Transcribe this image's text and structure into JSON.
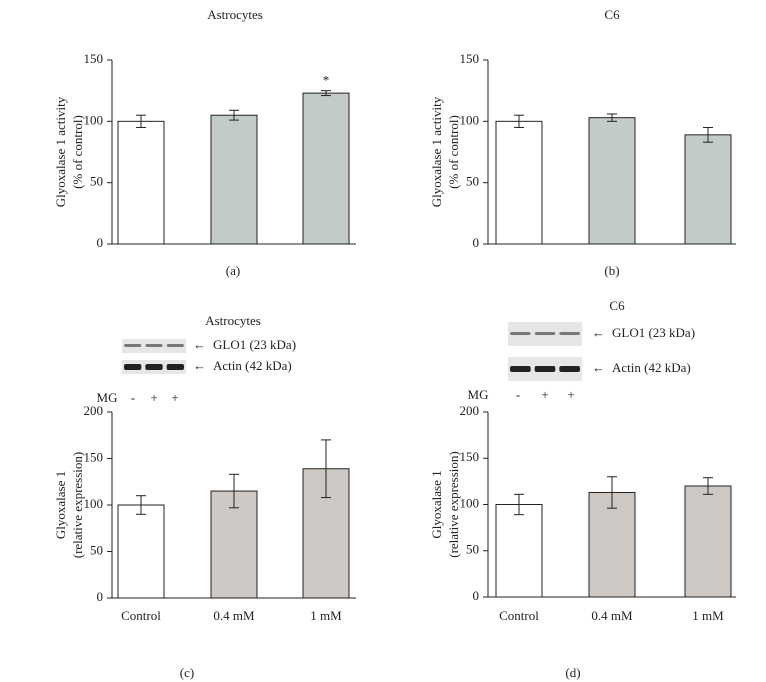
{
  "chart_data": [
    {
      "type": "bar",
      "title": "Astrocytes",
      "panel_label": "(a)",
      "ylabel": [
        "Glyoxalase 1 activity",
        "(% of control)"
      ],
      "categories": [
        null,
        null,
        null
      ],
      "values": [
        100,
        105,
        123
      ],
      "errors": [
        5,
        4,
        2
      ],
      "colors": [
        "#ffffff",
        "#c3cbc7",
        "#c3cbc7"
      ],
      "significance": [
        null,
        null,
        "*"
      ],
      "ylim": [
        0,
        150
      ],
      "yticks": [
        0,
        50,
        100,
        150
      ]
    },
    {
      "type": "bar",
      "title": "C6",
      "panel_label": "(b)",
      "ylabel": [
        "Glyoxalase 1 activity",
        "(% of control)"
      ],
      "categories": [
        null,
        null,
        null
      ],
      "values": [
        100,
        103,
        89
      ],
      "errors": [
        5,
        3,
        6
      ],
      "colors": [
        "#ffffff",
        "#c3cbc7",
        "#c3cbc7"
      ],
      "ylim": [
        0,
        150
      ],
      "yticks": [
        0,
        50,
        100,
        150
      ]
    },
    {
      "type": "bar",
      "title": "Astrocytes",
      "panel_label": "(c)",
      "ylabel": [
        "Glyoxalase 1",
        "(relative expression)"
      ],
      "categories": [
        "Control",
        "0.4 mM",
        "1 mM"
      ],
      "values": [
        100,
        115,
        139
      ],
      "errors": [
        10,
        18,
        31
      ],
      "colors": [
        "#ffffff",
        "#cdc8c4",
        "#cdc8c4"
      ],
      "ylim": [
        0,
        200
      ],
      "yticks": [
        0,
        50,
        100,
        150,
        200
      ],
      "blot": {
        "bands": [
          "GLO1 (23 kDa)",
          "Actin (42 kDa)"
        ],
        "treatment_label": "MG",
        "treatments": [
          "-",
          "+",
          "+"
        ]
      }
    },
    {
      "type": "bar",
      "title": "C6",
      "panel_label": "(d)",
      "ylabel": [
        "Glyoxalase 1",
        "(relative expression)"
      ],
      "categories": [
        "Control",
        "0.4 mM",
        "1 mM"
      ],
      "values": [
        100,
        113,
        120
      ],
      "errors": [
        11,
        17,
        9
      ],
      "colors": [
        "#ffffff",
        "#cdc8c4",
        "#cdc8c4"
      ],
      "ylim": [
        0,
        200
      ],
      "yticks": [
        0,
        50,
        100,
        150,
        200
      ],
      "blot": {
        "bands": [
          "GLO1 (23 kDa)",
          "Actin (42 kDa)"
        ],
        "treatment_label": "MG",
        "treatments": [
          "-",
          "+",
          "+"
        ]
      }
    }
  ]
}
